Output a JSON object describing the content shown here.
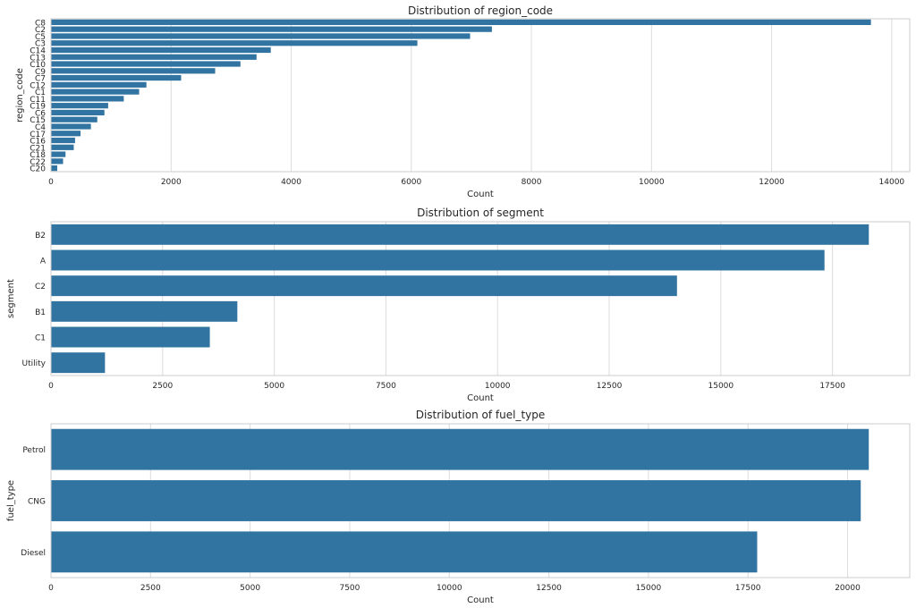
{
  "chart_data": [
    {
      "type": "bar",
      "orientation": "horizontal",
      "title": "Distribution of region_code",
      "xlabel": "Count",
      "ylabel": "region_code",
      "categories": [
        "C8",
        "C2",
        "C5",
        "C3",
        "C14",
        "C13",
        "C10",
        "C9",
        "C7",
        "C12",
        "C1",
        "C11",
        "C19",
        "C6",
        "C15",
        "C4",
        "C17",
        "C16",
        "C21",
        "C18",
        "C22",
        "C20"
      ],
      "values": [
        13654,
        7342,
        6979,
        6101,
        3660,
        3423,
        3155,
        2734,
        2167,
        1589,
        1468,
        1212,
        952,
        890,
        771,
        665,
        492,
        401,
        379,
        242,
        201,
        104
      ],
      "xlim": [
        0,
        14300
      ],
      "xticks": [
        0,
        2000,
        4000,
        6000,
        8000,
        10000,
        12000,
        14000
      ],
      "grid": true,
      "color": "#3274a1"
    },
    {
      "type": "bar",
      "orientation": "horizontal",
      "title": "Distribution of segment",
      "xlabel": "Count",
      "ylabel": "segment",
      "categories": [
        "B2",
        "A",
        "C2",
        "B1",
        "C1",
        "Utility"
      ],
      "values": [
        18314,
        17321,
        14018,
        4173,
        3557,
        1209
      ],
      "xlim": [
        0,
        19230
      ],
      "xticks": [
        0,
        2500,
        5000,
        7500,
        10000,
        12500,
        15000,
        17500
      ],
      "grid": true,
      "color": "#3274a1"
    },
    {
      "type": "bar",
      "orientation": "horizontal",
      "title": "Distribution of fuel_type",
      "xlabel": "Count",
      "ylabel": "fuel_type",
      "categories": [
        "Petrol",
        "CNG",
        "Diesel"
      ],
      "values": [
        20532,
        20330,
        17730
      ],
      "xlim": [
        0,
        21560
      ],
      "xticks": [
        0,
        2500,
        5000,
        7500,
        10000,
        12500,
        15000,
        17500,
        20000
      ],
      "grid": true,
      "color": "#3274a1"
    }
  ]
}
